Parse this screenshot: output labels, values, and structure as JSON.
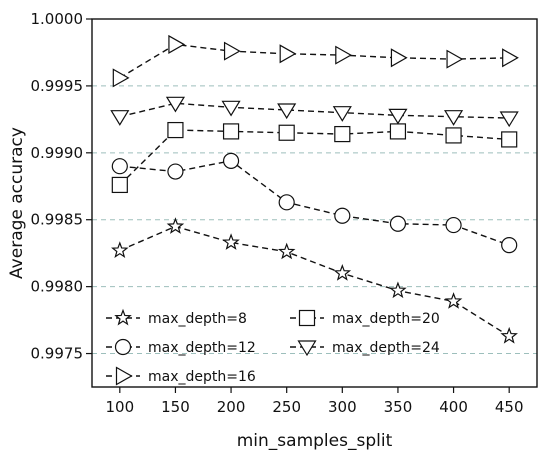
{
  "chart_data": {
    "type": "line",
    "xlabel": "min_samples_split",
    "ylabel": "Average accuracy",
    "x": [
      100,
      150,
      200,
      250,
      300,
      350,
      400,
      450
    ],
    "xlim": [
      75,
      475
    ],
    "ylim": [
      0.99725,
      1.0
    ],
    "xticks": [
      "100",
      "150",
      "200",
      "250",
      "300",
      "350",
      "400",
      "450"
    ],
    "yticks": [
      "0.9975",
      "0.9980",
      "0.9985",
      "0.9990",
      "0.9995",
      "1.0000"
    ],
    "grid": "horizontal dashed",
    "legend_position": "lower-left",
    "series": [
      {
        "name": "max_depth=8",
        "marker": "star",
        "values": [
          0.99827,
          0.99845,
          0.99833,
          0.99826,
          0.9981,
          0.99797,
          0.99789,
          0.99763
        ]
      },
      {
        "name": "max_depth=12",
        "marker": "circle",
        "values": [
          0.9989,
          0.99886,
          0.99894,
          0.99863,
          0.99853,
          0.99847,
          0.99846,
          0.99831
        ]
      },
      {
        "name": "max_depth=16",
        "marker": "triangle-right",
        "values": [
          0.99956,
          0.99981,
          0.99976,
          0.99974,
          0.99973,
          0.99971,
          0.9997,
          0.99971
        ]
      },
      {
        "name": "max_depth=20",
        "marker": "square",
        "values": [
          0.99876,
          0.99917,
          0.99916,
          0.99915,
          0.99914,
          0.99916,
          0.99913,
          0.9991
        ]
      },
      {
        "name": "max_depth=24",
        "marker": "triangle-down",
        "values": [
          0.99927,
          0.99937,
          0.99934,
          0.99932,
          0.9993,
          0.99928,
          0.99927,
          0.99926
        ]
      }
    ],
    "colors": {
      "line": "#111111",
      "grid": "#9dbfbc",
      "marker_fill": "#ffffff"
    }
  }
}
